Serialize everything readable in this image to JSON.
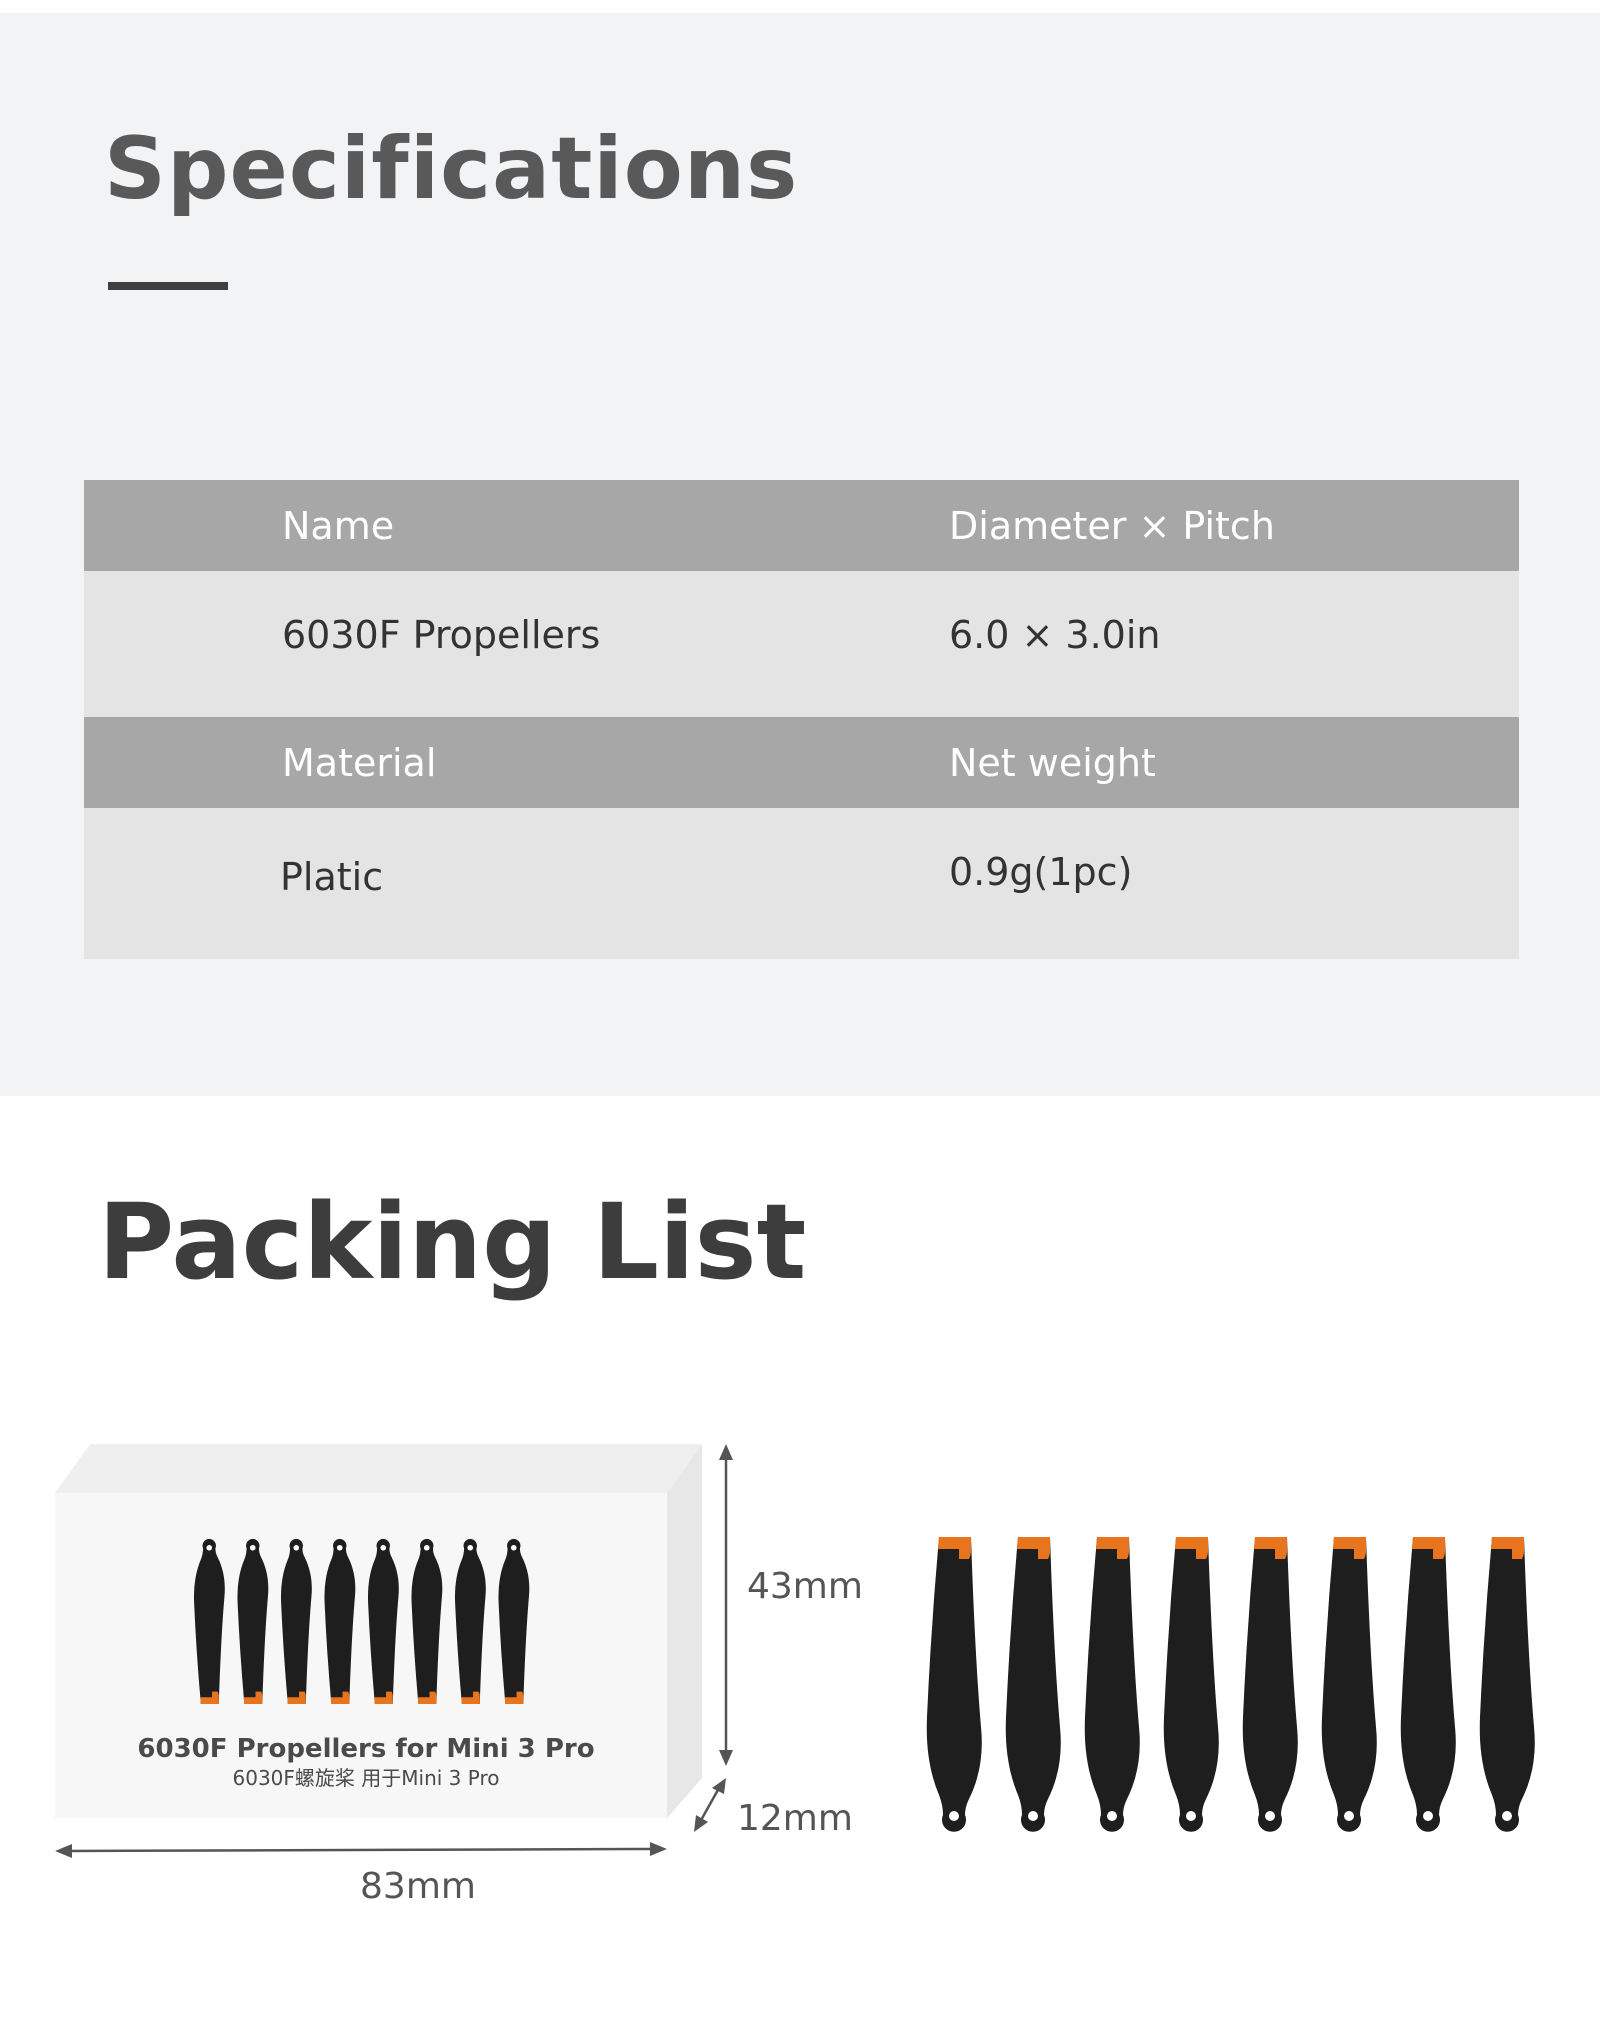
{
  "specifications": {
    "title": "Specifications",
    "rows": [
      {
        "type": "header",
        "col1": "Name",
        "col2": "Diameter × Pitch"
      },
      {
        "type": "value",
        "col1": "6030F Propellers",
        "col2": "6.0 × 3.0in"
      },
      {
        "type": "header",
        "col1": "Material",
        "col2": "Net weight"
      },
      {
        "type": "value",
        "col1": "Platic",
        "col2": "0.9g(1pc)"
      }
    ]
  },
  "packing_list": {
    "title": "Packing List",
    "box": {
      "label_en": "6030F Propellers for Mini 3 Pro",
      "label_cn": "6030F螺旋桨  用于Mini 3 Pro",
      "height": "43mm",
      "depth": "12mm",
      "width": "83mm"
    },
    "propeller_count": 8
  },
  "colors": {
    "blade": "#1e1e1e",
    "tip": "#e8741e",
    "header_row": "#a7a7a7",
    "value_row": "#e4e4e4",
    "section_bg": "#f2f3f5"
  }
}
